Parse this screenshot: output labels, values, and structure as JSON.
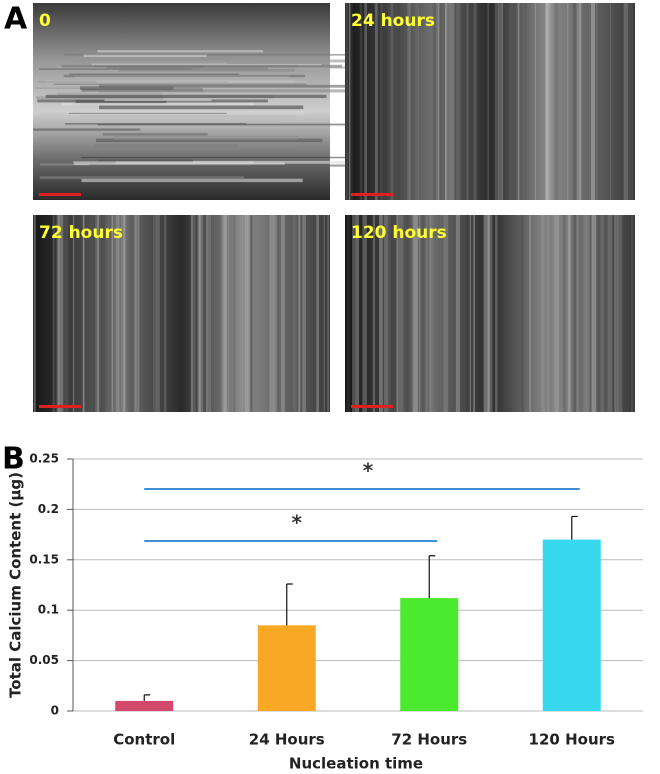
{
  "panel_a": {
    "label": "A",
    "images": [
      {
        "label": "0"
      },
      {
        "label": "24 hours"
      },
      {
        "label": "72 hours"
      },
      {
        "label": "120 hours"
      }
    ]
  },
  "panel_b": {
    "label": "B"
  },
  "chart_data": {
    "type": "bar",
    "categories": [
      "Control",
      "24 Hours",
      "72 Hours",
      "120 Hours"
    ],
    "values": [
      0.01,
      0.085,
      0.112,
      0.17
    ],
    "errors": [
      0.006,
      0.041,
      0.042,
      0.023
    ],
    "colors": [
      "#d2496b",
      "#f9a825",
      "#4cea2e",
      "#38d8ee"
    ],
    "ylim": [
      0,
      0.25
    ],
    "yticks": [
      0,
      0.05,
      0.1,
      0.15,
      0.2,
      0.25
    ],
    "grid": true,
    "y_label": "Total Calcium Content (μg)",
    "x_label": "Nucleation time",
    "annotations": [
      "*",
      "*"
    ]
  }
}
